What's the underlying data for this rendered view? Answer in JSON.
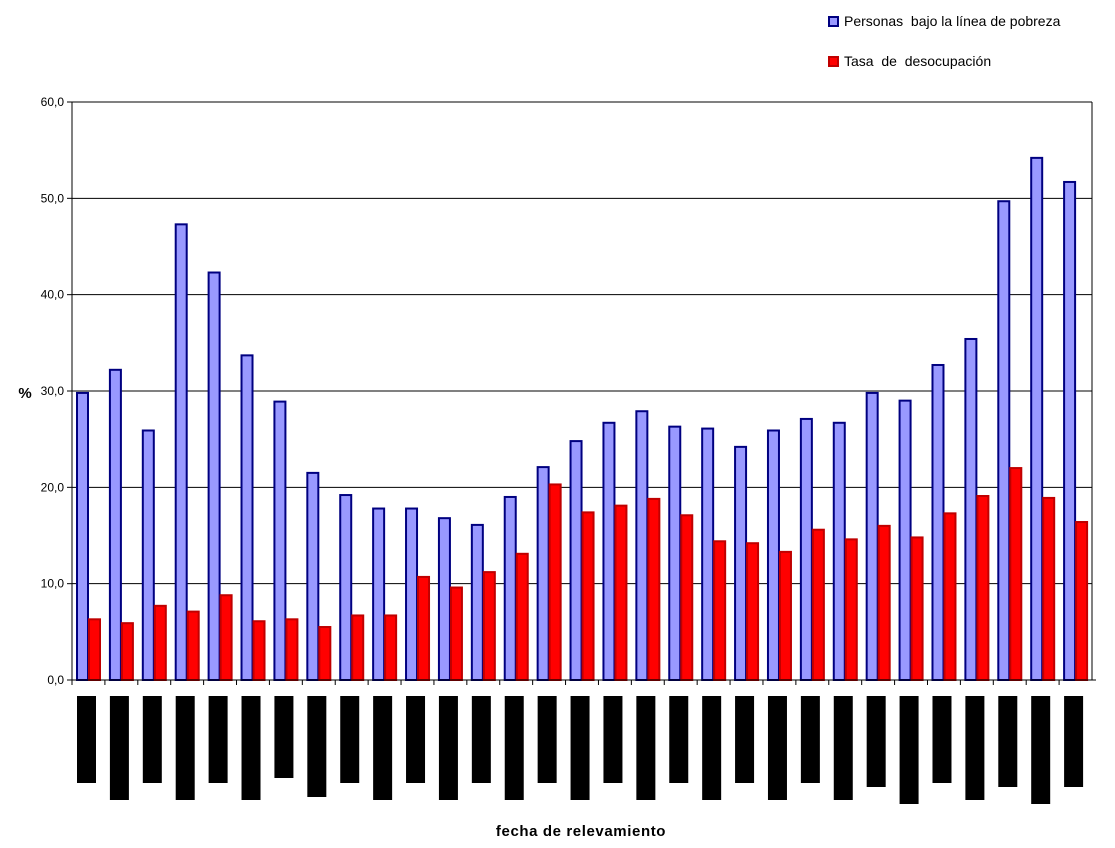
{
  "chart_data": {
    "type": "bar",
    "title": "",
    "xlabel": "fecha de relevamiento",
    "ylabel": "%",
    "ylim": [
      0,
      60
    ],
    "yticks": [
      "0,0",
      "10,0",
      "20,0",
      "30,0",
      "40,0",
      "50,0",
      "60,0"
    ],
    "grid": true,
    "legend_position": "top-right",
    "categories_note": "x tick labels redacted (rendered as black bars)",
    "series": [
      {
        "name": "Personas  bajo la línea de pobreza",
        "color": "#9999ff",
        "border": "#000080",
        "values": [
          29.8,
          32.2,
          25.9,
          47.3,
          42.3,
          33.7,
          28.9,
          21.5,
          19.2,
          17.8,
          17.8,
          16.8,
          16.1,
          19.0,
          22.1,
          24.8,
          26.7,
          27.9,
          26.3,
          26.1,
          24.2,
          25.9,
          27.1,
          26.7,
          29.8,
          29.0,
          32.7,
          35.4,
          49.7,
          54.2,
          51.7
        ]
      },
      {
        "name": "Tasa  de  desocupación",
        "color": "#ff0000",
        "border": "#c00000",
        "values": [
          6.3,
          5.9,
          7.7,
          7.1,
          8.8,
          6.1,
          6.3,
          5.5,
          6.7,
          6.7,
          10.7,
          9.6,
          11.2,
          13.1,
          20.3,
          17.4,
          18.1,
          18.8,
          17.1,
          14.4,
          14.2,
          13.3,
          15.6,
          14.6,
          16.0,
          14.8,
          17.3,
          19.1,
          22.0,
          18.9,
          16.4
        ]
      }
    ]
  }
}
